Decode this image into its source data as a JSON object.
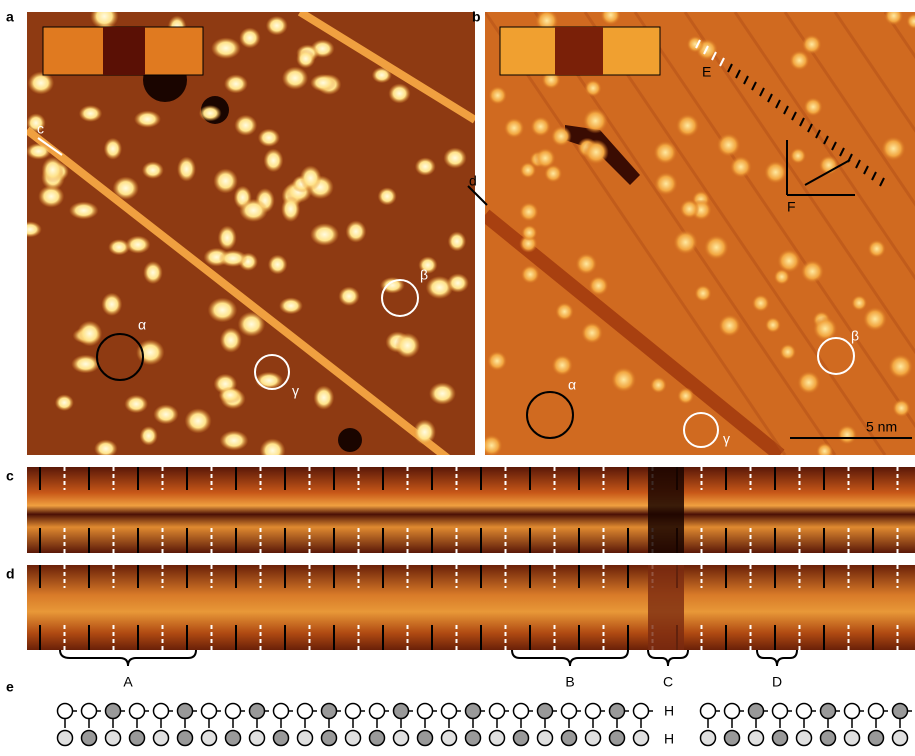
{
  "panels": [
    {
      "label": "a",
      "annotations": [
        "c",
        "α",
        "β",
        "γ"
      ]
    },
    {
      "label": "b",
      "annotations": [
        "d",
        "E",
        "F",
        "α",
        "β",
        "γ"
      ],
      "scale_bar": "5 nm"
    },
    {
      "label": "c"
    },
    {
      "label": "d",
      "regions": [
        "A",
        "B",
        "C",
        "D"
      ]
    },
    {
      "label": "e",
      "end_labels": [
        "H",
        "H"
      ]
    }
  ]
}
